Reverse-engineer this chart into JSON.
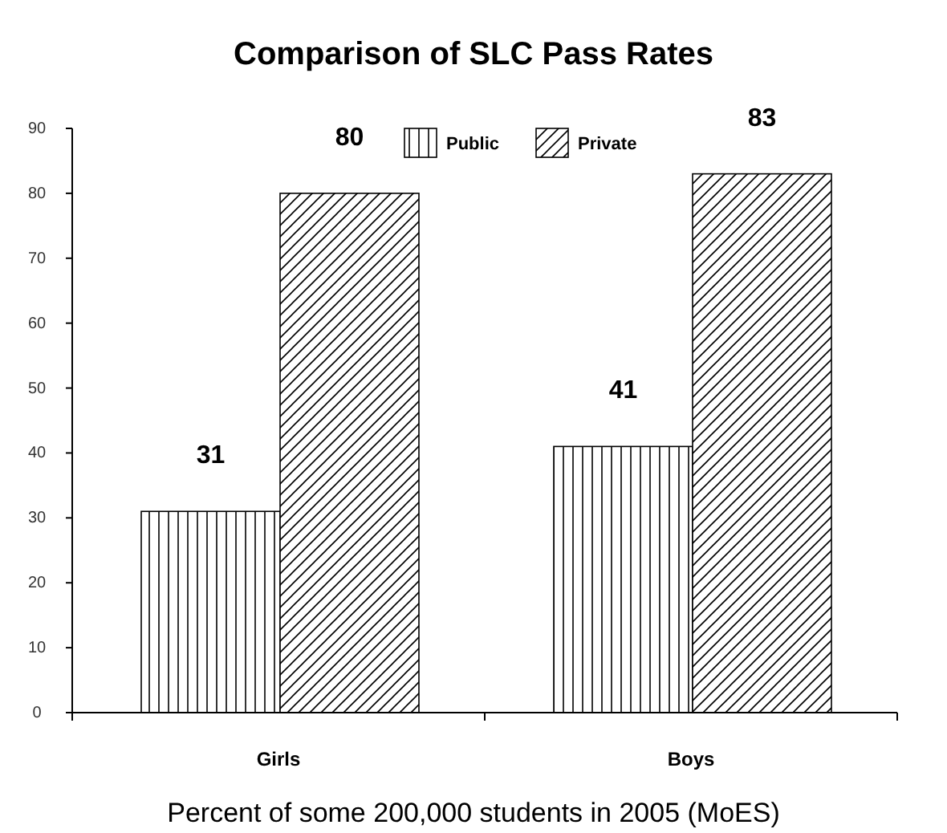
{
  "chart_data": {
    "type": "bar",
    "title": "Comparison of SLC Pass Rates",
    "categories": [
      "Girls",
      "Boys"
    ],
    "series": [
      {
        "name": "Public",
        "color": "#000000",
        "values": [
          31,
          41
        ]
      },
      {
        "name": "Private",
        "color": "#000000",
        "values": [
          80,
          83
        ]
      }
    ],
    "ylim": [
      0,
      90
    ],
    "yticks": [
      0,
      10,
      20,
      30,
      40,
      50,
      60,
      70,
      80,
      90
    ],
    "grid": false,
    "legend": "top",
    "data_labels": true,
    "annotations": [
      "Percent of some 200,000 students in 2005 (MoES)"
    ]
  }
}
